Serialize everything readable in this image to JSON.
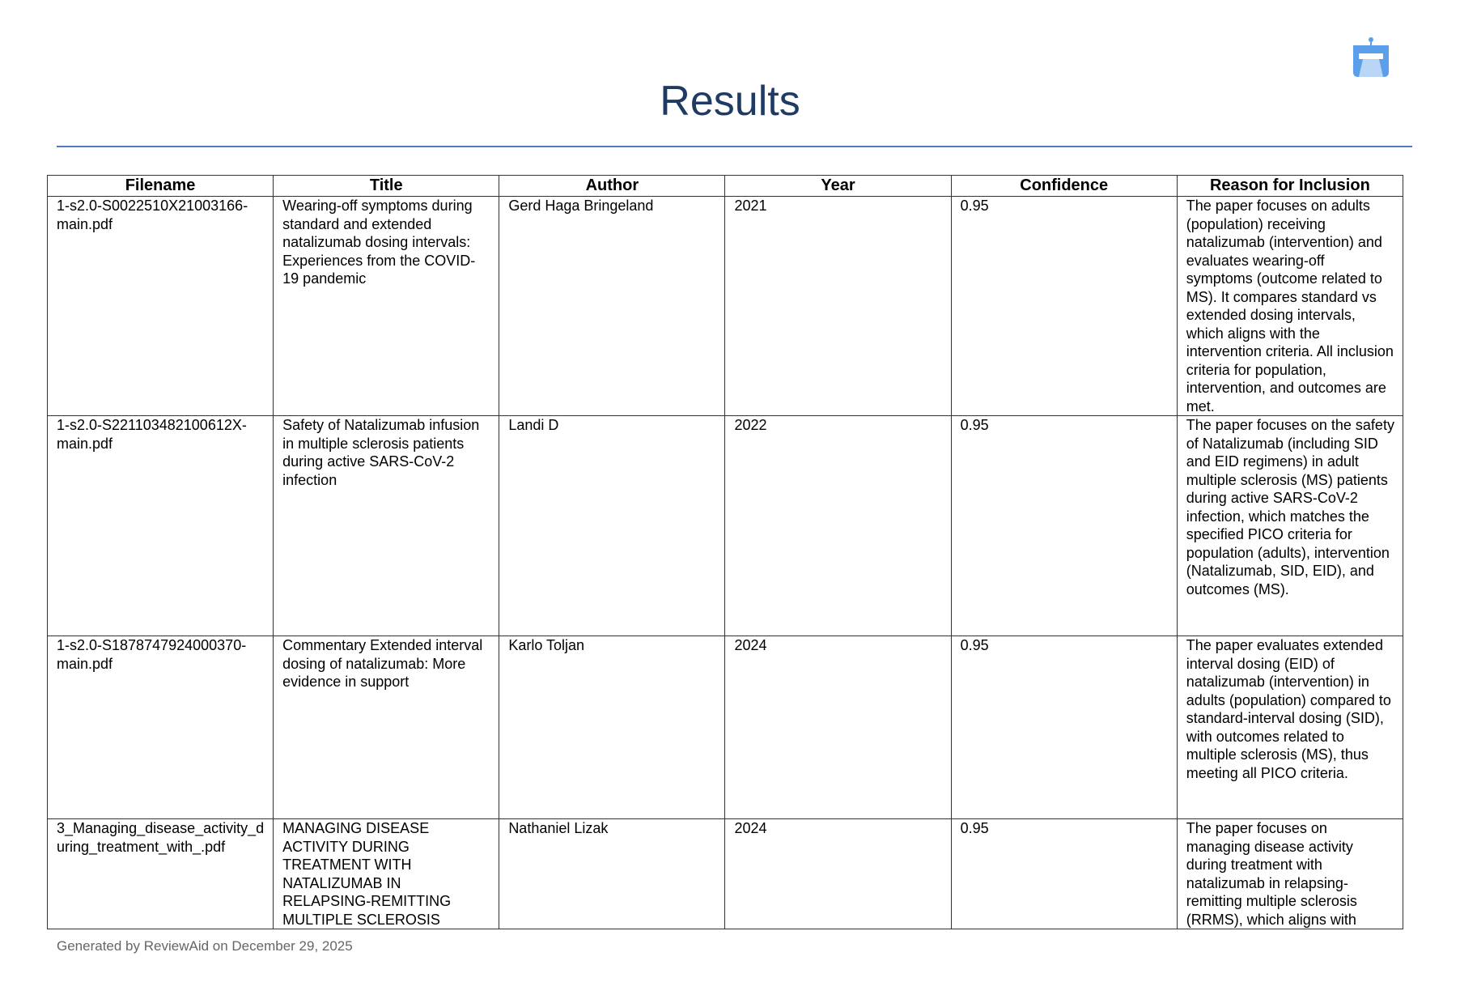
{
  "logo": {
    "icon": "robot-lamp-logo-icon",
    "color": "#5b9ee9"
  },
  "page_title": "Results",
  "table": {
    "headers": [
      "Filename",
      "Title",
      "Author",
      "Year",
      "Confidence",
      "Reason for Inclusion"
    ],
    "rows": [
      {
        "filename": "1-s2.0-S0022510X21003166-main.pdf",
        "title": "Wearing-off symptoms during standard and extended natalizumab dosing intervals: Experiences from the COVID-19 pandemic",
        "author": "Gerd Haga Bringeland",
        "year": "2021",
        "confidence": "0.95",
        "reason": "The paper focuses on adults (population) receiving natalizumab (intervention) and evaluates wearing-off symptoms (outcome related to MS). It compares standard vs extended dosing intervals, which aligns with the intervention criteria. All inclusion criteria for population, intervention, and outcomes are met."
      },
      {
        "filename": "1-s2.0-S221103482100612X-main.pdf",
        "title": "Safety of Natalizumab infusion in multiple sclerosis patients during active SARS-CoV-2 infection",
        "author": "Landi D",
        "year": "2022",
        "confidence": "0.95",
        "reason": "The paper focuses on the safety of Natalizumab (including SID and EID regimens) in adult multiple sclerosis (MS) patients during active SARS-CoV-2 infection, which matches the specified PICO criteria for population (adults), intervention (Natalizumab, SID, EID), and outcomes (MS)."
      },
      {
        "filename": "1-s2.0-S1878747924000370-main.pdf",
        "title": "Commentary Extended interval dosing of natalizumab: More evidence in support",
        "author": "Karlo Toljan",
        "year": "2024",
        "confidence": "0.95",
        "reason": "The paper evaluates extended interval dosing (EID) of natalizumab (intervention) in adults (population) compared to standard-interval dosing (SID), with outcomes related to multiple sclerosis (MS), thus meeting all PICO criteria."
      },
      {
        "filename": "3_Managing_disease_activity_during_treatment_with_.pdf",
        "title": "MANAGING DISEASE ACTIVITY DURING TREATMENT WITH NATALIZUMAB IN RELAPSING-REMITTING MULTIPLE SCLEROSIS",
        "author": "Nathaniel Lizak",
        "year": "2024",
        "confidence": "0.95",
        "reason": "The paper focuses on managing disease activity during treatment with natalizumab in relapsing-remitting multiple sclerosis (RRMS), which aligns with"
      }
    ]
  },
  "footer": "Generated by ReviewAid on December 29, 2025"
}
